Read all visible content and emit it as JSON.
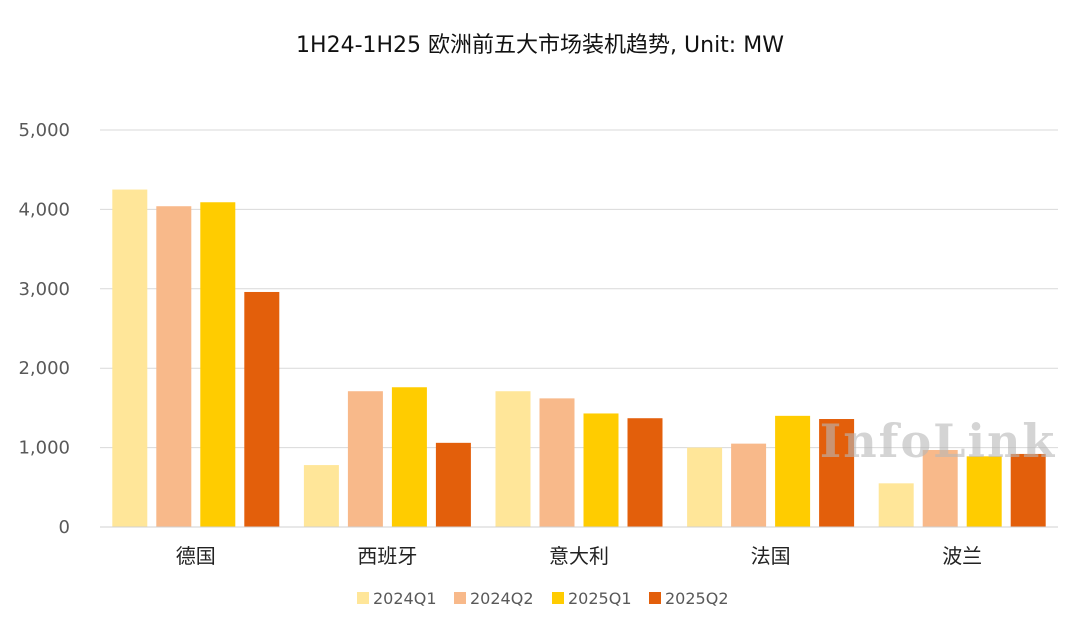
{
  "chart_data": {
    "type": "bar",
    "title": "1H24-1H25 欧洲前五大市场装机趋势, Unit: MW",
    "categories": [
      "德国",
      "西班牙",
      "意大利",
      "法国",
      "波兰"
    ],
    "series": [
      {
        "name": "2024Q1",
        "color": "#FFE699",
        "values": [
          4250,
          780,
          1710,
          1000,
          550
        ]
      },
      {
        "name": "2024Q2",
        "color": "#F8B98A",
        "values": [
          4040,
          1710,
          1620,
          1050,
          970
        ]
      },
      {
        "name": "2025Q1",
        "color": "#FFCC00",
        "values": [
          4090,
          1760,
          1430,
          1400,
          890
        ]
      },
      {
        "name": "2025Q2",
        "color": "#E35F0B",
        "values": [
          2960,
          1060,
          1370,
          1360,
          920
        ]
      }
    ],
    "yticks": [
      "0",
      "1,000",
      "2,000",
      "3,000",
      "4,000",
      "5,000"
    ],
    "ytick_values": [
      0,
      1000,
      2000,
      3000,
      4000,
      5000
    ],
    "ylim": [
      0,
      5000
    ],
    "grid": true,
    "legend_position": "bottom",
    "watermark": "InfoLink"
  }
}
